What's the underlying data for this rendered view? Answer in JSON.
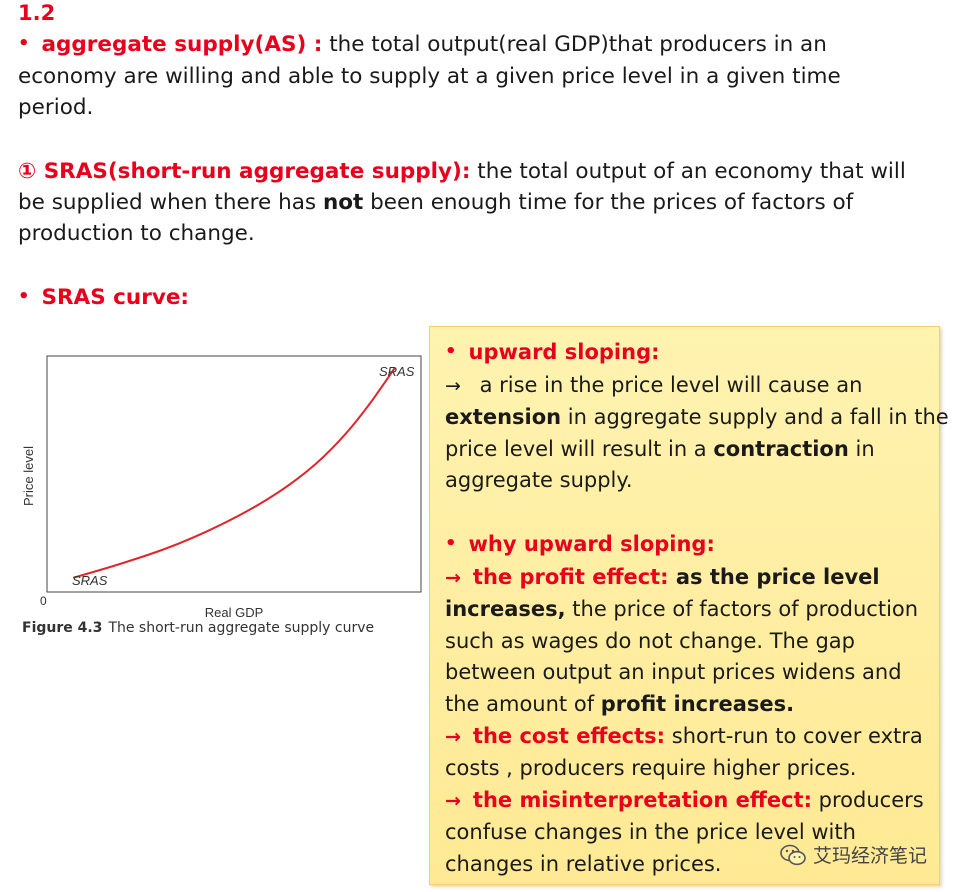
{
  "section": {
    "number": "1.2"
  },
  "definition_as": {
    "term": "aggregate supply(AS) :",
    "line1": " the total output(real GDP)that producers in an",
    "line2": "economy are willing and able to supply at a given price level in a given time",
    "line3": "period."
  },
  "definition_sras": {
    "term": "① SRAS(short-run aggregate supply):",
    "line1": " the total output of an economy that will",
    "line2_a": "be supplied when there has ",
    "line2_bold": "not",
    "line2_b": " been enough time for the prices of factors of",
    "line3": "production to change."
  },
  "sras_curve_heading": "SRAS curve:",
  "chart_data": {
    "type": "line",
    "xlabel": "Real GDP",
    "ylabel": "Price level",
    "origin_label": "0",
    "series": [
      {
        "name": "SRAS",
        "color": "#e0252a",
        "x": [
          0.07,
          0.2,
          0.35,
          0.5,
          0.62,
          0.72,
          0.8,
          0.86,
          0.9,
          0.93
        ],
        "y": [
          0.06,
          0.12,
          0.2,
          0.31,
          0.42,
          0.54,
          0.67,
          0.79,
          0.88,
          0.95
        ]
      }
    ],
    "curve_labels": {
      "top": "SRAS",
      "bottom": "SRAS"
    },
    "caption_figure": "Figure 4.3",
    "caption_text": "The short-run aggregate supply curve"
  },
  "note": {
    "heading1": "upward sloping:",
    "arrow1_text": " a rise in the price level will cause an",
    "p1_l2_bold": "extension",
    "p1_l2": " in aggregate supply and a fall in the",
    "p1_l3_a": "price level will result in a ",
    "p1_l3_bold": "contraction",
    "p1_l3_b": " in",
    "p1_l4": "aggregate supply.",
    "heading2": "why upward sloping:",
    "profit_label": "the profit effect:",
    "profit_bold1": " as the price level",
    "profit_bold2": "increases,",
    "profit_l2": " the price of factors of production",
    "profit_l3": "such as wages do not change. The gap",
    "profit_l4": "between output an input prices widens and",
    "profit_l5_a": "the amount of ",
    "profit_l5_bold": "profit increases.",
    "cost_label": "the cost effects:",
    "cost_l1": " short-run to cover extra",
    "cost_l2": "costs , producers require higher prices.",
    "mis_label": "the misinterpretation effect:",
    "mis_l1": " producers",
    "mis_l2": "confuse changes in the price level with",
    "mis_l3": "changes in relative prices.",
    "arrow": "→",
    "bullet": "•"
  },
  "watermark": "艾玛经济笔记"
}
